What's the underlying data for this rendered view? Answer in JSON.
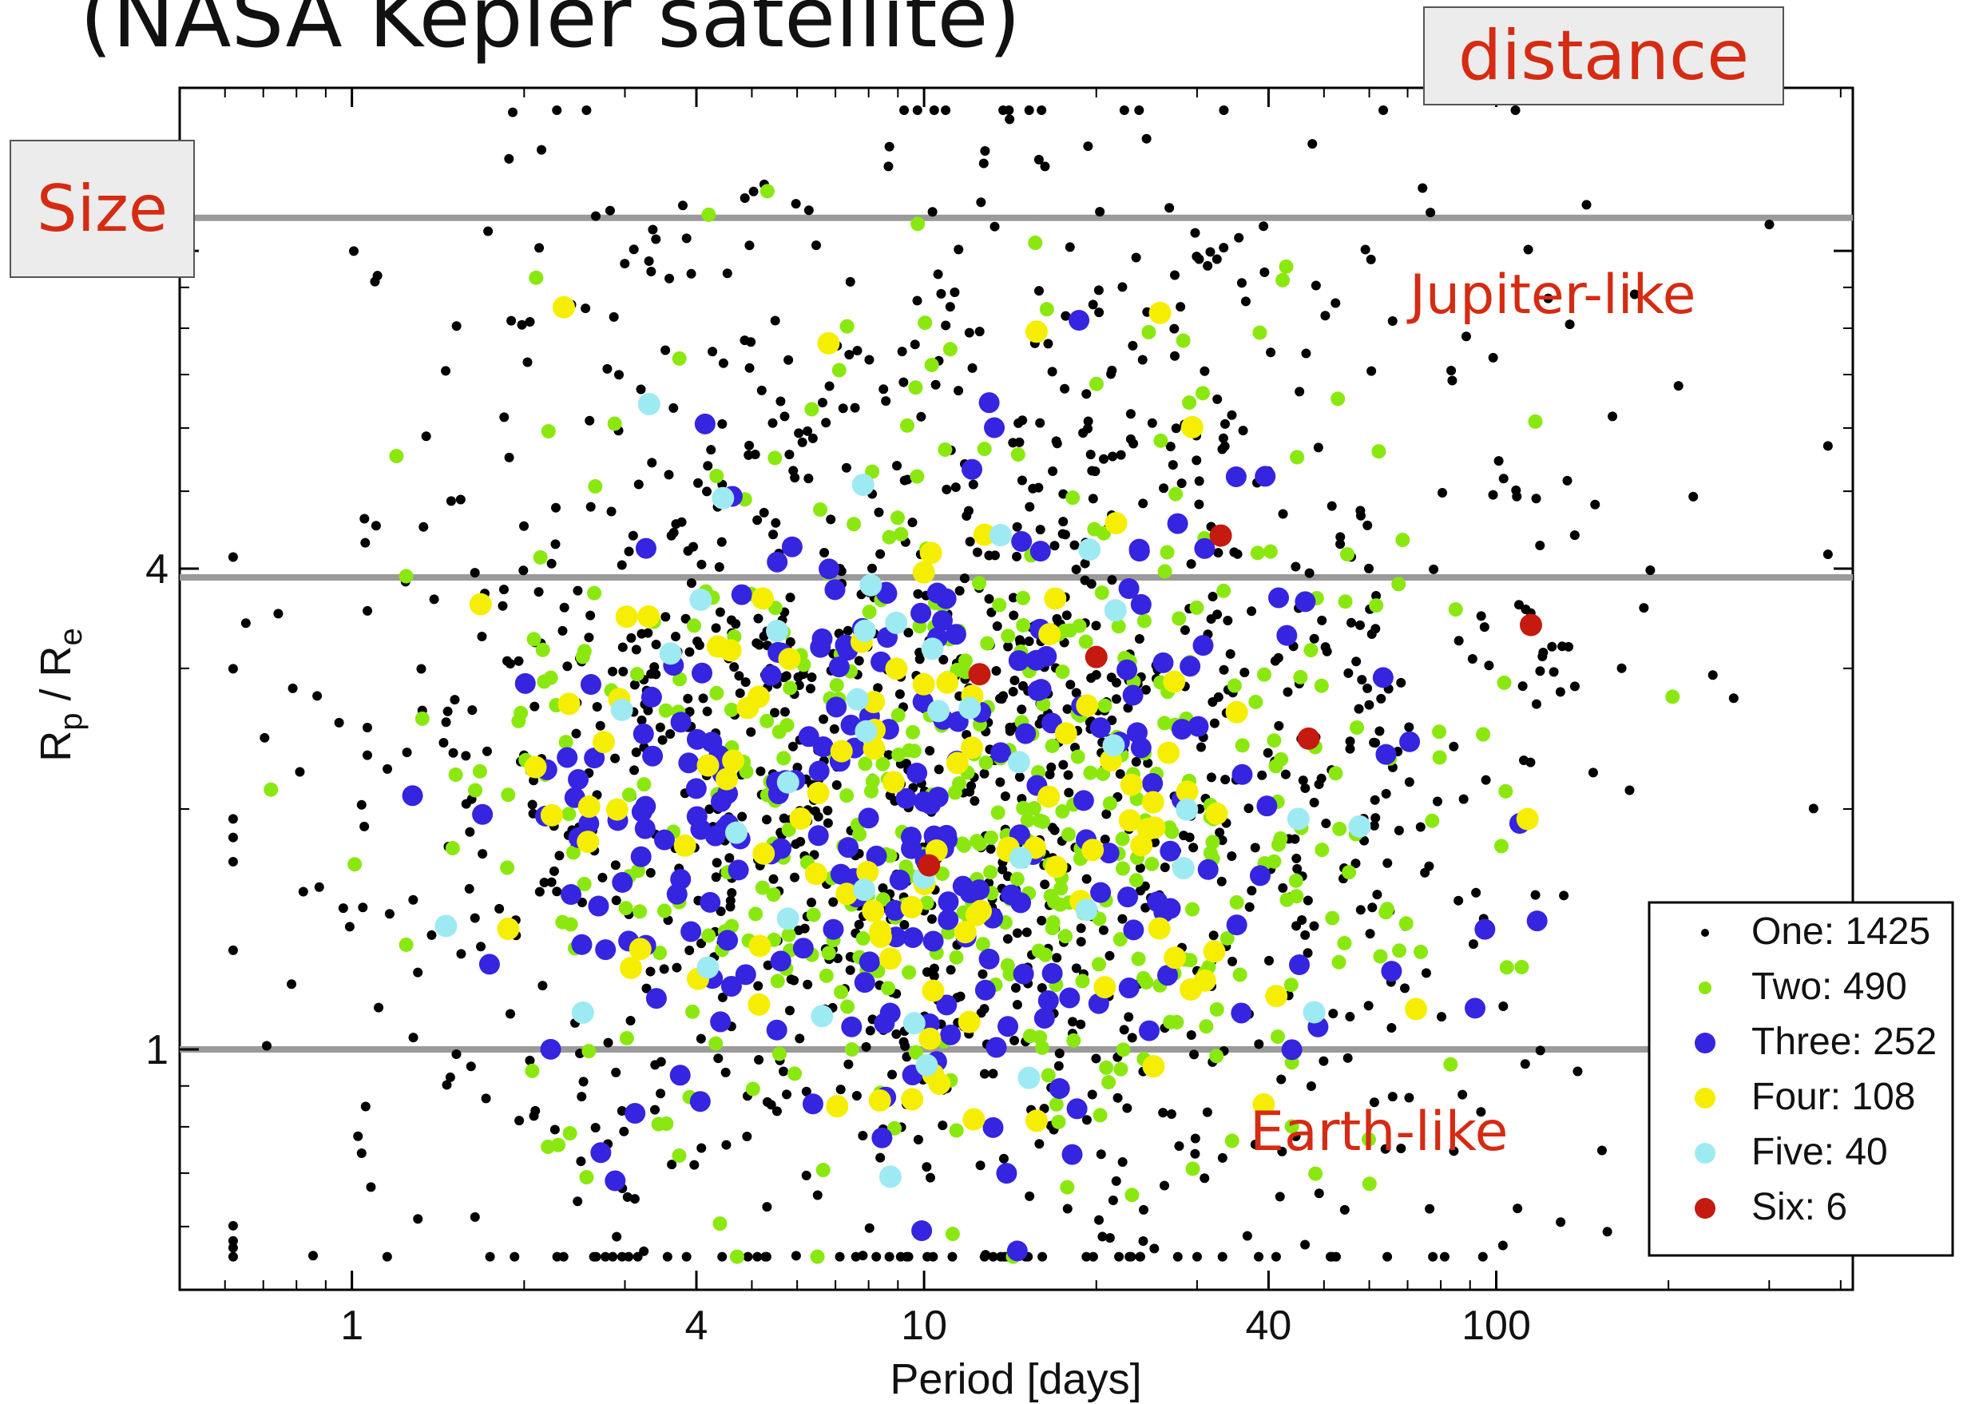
{
  "header": {
    "title": "(NASA Kepler satellite)"
  },
  "callouts": {
    "size": "Size",
    "distance": "distance"
  },
  "annotations": {
    "jupiter": "Jupiter-like",
    "earth": "Earth-like"
  },
  "colors": {
    "one": "#000000",
    "two": "#8ae80f",
    "three": "#3524e0",
    "four": "#f5ee00",
    "five": "#9eeaf2",
    "six": "#c41a10",
    "reference_line": "#9a9a9a",
    "annotation": "#d52b12"
  },
  "chart_data": {
    "type": "scatter",
    "xlabel": "Period [days]",
    "ylabel_main": "R",
    "ylabel_sub1": "p",
    "ylabel_mid": " / R",
    "ylabel_sub2": "e",
    "x_scale": "log",
    "y_scale": "log",
    "xlim": [
      0.5,
      420
    ],
    "ylim": [
      0.5,
      16
    ],
    "x_ticks": [
      1,
      4,
      10,
      40,
      100
    ],
    "x_tick_labels": [
      "1",
      "4",
      "10",
      "40",
      "100"
    ],
    "y_ticks": [
      1,
      4,
      10
    ],
    "y_tick_labels": [
      "1",
      "4",
      "10"
    ],
    "reference_lines_y": [
      1,
      3.9,
      11
    ],
    "legend_position": "bottom-right",
    "series": [
      {
        "name": "One: 1425",
        "key": "one",
        "count": 1425,
        "center_period": 12,
        "center_radius": 2.2
      },
      {
        "name": "Two: 490",
        "key": "two",
        "count": 490,
        "center_period": 12,
        "center_radius": 2.0
      },
      {
        "name": "Three: 252",
        "key": "three",
        "count": 252,
        "center_period": 9,
        "center_radius": 1.9
      },
      {
        "name": "Four: 108",
        "key": "four",
        "count": 108,
        "center_period": 9,
        "center_radius": 2.0
      },
      {
        "name": "Five: 40",
        "key": "five",
        "count": 40,
        "center_period": 10,
        "center_radius": 2.1
      },
      {
        "name": "Six: 6",
        "key": "six",
        "count": 6,
        "points": [
          [
            10.2,
            1.7
          ],
          [
            12.5,
            2.95
          ],
          [
            20,
            3.1
          ],
          [
            33,
            4.4
          ],
          [
            47,
            2.45
          ],
          [
            115,
            3.4
          ]
        ]
      }
    ]
  }
}
